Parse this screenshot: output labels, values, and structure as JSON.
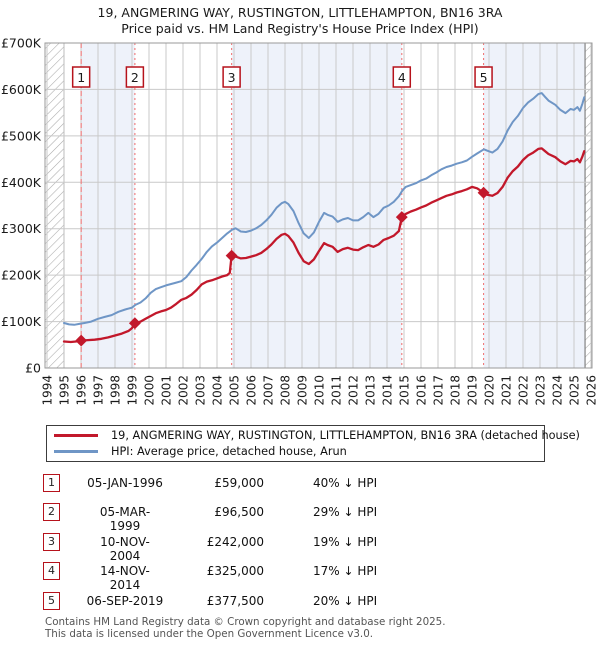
{
  "title": "19, ANGMERING WAY, RUSTINGTON, LITTLEHAMPTON, BN16 3RA",
  "subtitle": "Price paid vs. HM Land Registry's House Price Index (HPI)",
  "legend": [
    {
      "label": "19, ANGMERING WAY, RUSTINGTON, LITTLEHAMPTON, BN16 3RA (detached house)",
      "color": "#c2182b"
    },
    {
      "label": "HPI: Average price, detached house, Arun",
      "color": "#6f96c6"
    }
  ],
  "sales": [
    {
      "num": "1",
      "date": "05-JAN-1996",
      "price": "£59,000",
      "hpi_diff": "40% ↓ HPI",
      "year": 1996.01,
      "value_k": 59
    },
    {
      "num": "2",
      "date": "05-MAR-1999",
      "price": "£96,500",
      "hpi_diff": "29% ↓ HPI",
      "year": 1999.17,
      "value_k": 96.5
    },
    {
      "num": "3",
      "date": "10-NOV-2004",
      "price": "£242,000",
      "hpi_diff": "19% ↓ HPI",
      "year": 2004.86,
      "value_k": 242
    },
    {
      "num": "4",
      "date": "14-NOV-2014",
      "price": "£325,000",
      "hpi_diff": "17% ↓ HPI",
      "year": 2014.87,
      "value_k": 325
    },
    {
      "num": "5",
      "date": "06-SEP-2019",
      "price": "£377,500",
      "hpi_diff": "20% ↓ HPI",
      "year": 2019.68,
      "value_k": 377.5
    }
  ],
  "footer": {
    "line1": "Contains HM Land Registry data © Crown copyright and database right 2025.",
    "line2": "This data is licensed under the Open Government Licence v3.0."
  },
  "chart_data": {
    "type": "line",
    "title": "19, ANGMERING WAY, RUSTINGTON, LITTLEHAMPTON, BN16 3RA — Price paid vs. HPI",
    "x_ticks": [
      1994,
      1995,
      1996,
      1997,
      1998,
      1999,
      2000,
      2001,
      2002,
      2003,
      2004,
      2005,
      2006,
      2007,
      2008,
      2009,
      2010,
      2011,
      2012,
      2013,
      2014,
      2015,
      2016,
      2017,
      2018,
      2019,
      2020,
      2021,
      2022,
      2023,
      2024,
      2025,
      2026
    ],
    "y_tick_labels": [
      "£0",
      "£100K",
      "£200K",
      "£300K",
      "£400K",
      "£500K",
      "£600K",
      "£700K"
    ],
    "y_tick_values_k": [
      0,
      100,
      200,
      300,
      400,
      500,
      600,
      700
    ],
    "xlim": [
      1994,
      2026.12
    ],
    "ylim_k": [
      0,
      700
    ],
    "data_start_year": 1995.0,
    "data_end_year": 2025.65,
    "shaded_periods": [
      [
        1996.01,
        1999.17
      ],
      [
        2004.86,
        2014.87
      ],
      [
        2019.68,
        2026.12
      ]
    ],
    "legend_position": "bottom",
    "grid": true,
    "colors": {
      "price": "#c2182b",
      "hpi": "#6f96c6",
      "band": "#eef2fa",
      "grid": "#c9c9c9",
      "frame": "#999999",
      "sale_line": "#f07878",
      "hatch": "#ababab",
      "hatch_edge": "#777777",
      "badge_border": "#b6121b"
    },
    "series": [
      {
        "name": "19, ANGMERING WAY, RUSTINGTON, LITTLEHAMPTON, BN16 3RA (detached house)",
        "color": "#c2182b",
        "points": [
          [
            1995.0,
            57
          ],
          [
            1995.4,
            56
          ],
          [
            1995.7,
            57
          ],
          [
            1996.01,
            59
          ],
          [
            1996.4,
            60
          ],
          [
            1996.8,
            61
          ],
          [
            1997.2,
            63
          ],
          [
            1997.6,
            66
          ],
          [
            1998.0,
            70
          ],
          [
            1998.4,
            74
          ],
          [
            1998.8,
            80
          ],
          [
            1999.0,
            86
          ],
          [
            1999.17,
            96.5
          ],
          [
            1999.5,
            100
          ],
          [
            1999.8,
            106
          ],
          [
            2000.1,
            112
          ],
          [
            2000.4,
            118
          ],
          [
            2000.7,
            122
          ],
          [
            2001.0,
            125
          ],
          [
            2001.3,
            130
          ],
          [
            2001.6,
            138
          ],
          [
            2001.9,
            147
          ],
          [
            2002.2,
            151
          ],
          [
            2002.5,
            158
          ],
          [
            2002.8,
            168
          ],
          [
            2003.1,
            180
          ],
          [
            2003.4,
            186
          ],
          [
            2003.7,
            189
          ],
          [
            2004.0,
            193
          ],
          [
            2004.3,
            197
          ],
          [
            2004.6,
            200
          ],
          [
            2004.75,
            205
          ],
          [
            2004.86,
            242
          ],
          [
            2005.1,
            240
          ],
          [
            2005.4,
            236
          ],
          [
            2005.7,
            237
          ],
          [
            2006.0,
            240
          ],
          [
            2006.3,
            243
          ],
          [
            2006.6,
            248
          ],
          [
            2006.9,
            256
          ],
          [
            2007.2,
            266
          ],
          [
            2007.5,
            278
          ],
          [
            2007.8,
            287
          ],
          [
            2008.0,
            289
          ],
          [
            2008.2,
            284
          ],
          [
            2008.5,
            270
          ],
          [
            2008.8,
            248
          ],
          [
            2009.1,
            230
          ],
          [
            2009.4,
            224
          ],
          [
            2009.7,
            234
          ],
          [
            2010.0,
            252
          ],
          [
            2010.3,
            269
          ],
          [
            2010.5,
            265
          ],
          [
            2010.8,
            261
          ],
          [
            2011.1,
            250
          ],
          [
            2011.4,
            256
          ],
          [
            2011.7,
            259
          ],
          [
            2012.0,
            255
          ],
          [
            2012.3,
            254
          ],
          [
            2012.6,
            260
          ],
          [
            2012.9,
            265
          ],
          [
            2013.2,
            261
          ],
          [
            2013.5,
            266
          ],
          [
            2013.8,
            276
          ],
          [
            2014.1,
            280
          ],
          [
            2014.4,
            285
          ],
          [
            2014.7,
            295
          ],
          [
            2014.87,
            325
          ],
          [
            2015.1,
            332
          ],
          [
            2015.4,
            337
          ],
          [
            2015.7,
            341
          ],
          [
            2016.0,
            346
          ],
          [
            2016.3,
            350
          ],
          [
            2016.6,
            356
          ],
          [
            2016.9,
            361
          ],
          [
            2017.2,
            366
          ],
          [
            2017.5,
            371
          ],
          [
            2017.8,
            374
          ],
          [
            2018.1,
            378
          ],
          [
            2018.4,
            381
          ],
          [
            2018.7,
            385
          ],
          [
            2019.0,
            390
          ],
          [
            2019.3,
            387
          ],
          [
            2019.5,
            382
          ],
          [
            2019.68,
            377.5
          ],
          [
            2019.9,
            373
          ],
          [
            2020.2,
            371
          ],
          [
            2020.5,
            377
          ],
          [
            2020.8,
            390
          ],
          [
            2021.1,
            410
          ],
          [
            2021.4,
            424
          ],
          [
            2021.7,
            434
          ],
          [
            2022.0,
            448
          ],
          [
            2022.3,
            458
          ],
          [
            2022.6,
            464
          ],
          [
            2022.9,
            472
          ],
          [
            2023.1,
            473
          ],
          [
            2023.3,
            467
          ],
          [
            2023.5,
            461
          ],
          [
            2023.9,
            454
          ],
          [
            2024.2,
            445
          ],
          [
            2024.5,
            439
          ],
          [
            2024.8,
            446
          ],
          [
            2025.0,
            445
          ],
          [
            2025.2,
            450
          ],
          [
            2025.35,
            443
          ],
          [
            2025.5,
            456
          ],
          [
            2025.6,
            467
          ]
        ]
      },
      {
        "name": "HPI: Average price, detached house, Arun",
        "color": "#6f96c6",
        "points": [
          [
            1995.0,
            97
          ],
          [
            1995.3,
            94
          ],
          [
            1995.6,
            93
          ],
          [
            1995.9,
            95
          ],
          [
            1996.2,
            97
          ],
          [
            1996.6,
            100
          ],
          [
            1997.0,
            106
          ],
          [
            1997.4,
            110
          ],
          [
            1997.8,
            114
          ],
          [
            1998.2,
            121
          ],
          [
            1998.6,
            126
          ],
          [
            1999.0,
            130
          ],
          [
            1999.2,
            136
          ],
          [
            1999.5,
            141
          ],
          [
            1999.8,
            150
          ],
          [
            2000.1,
            162
          ],
          [
            2000.4,
            170
          ],
          [
            2000.7,
            174
          ],
          [
            2001.0,
            178
          ],
          [
            2001.3,
            181
          ],
          [
            2001.6,
            184
          ],
          [
            2001.9,
            187
          ],
          [
            2002.2,
            196
          ],
          [
            2002.5,
            210
          ],
          [
            2002.8,
            222
          ],
          [
            2003.1,
            235
          ],
          [
            2003.4,
            250
          ],
          [
            2003.7,
            262
          ],
          [
            2004.0,
            270
          ],
          [
            2004.3,
            280
          ],
          [
            2004.6,
            290
          ],
          [
            2004.9,
            298
          ],
          [
            2005.1,
            301
          ],
          [
            2005.4,
            294
          ],
          [
            2005.7,
            293
          ],
          [
            2006.0,
            296
          ],
          [
            2006.3,
            301
          ],
          [
            2006.6,
            308
          ],
          [
            2006.9,
            318
          ],
          [
            2007.2,
            330
          ],
          [
            2007.5,
            345
          ],
          [
            2007.8,
            355
          ],
          [
            2008.0,
            358
          ],
          [
            2008.2,
            353
          ],
          [
            2008.5,
            338
          ],
          [
            2008.8,
            312
          ],
          [
            2009.1,
            290
          ],
          [
            2009.4,
            280
          ],
          [
            2009.7,
            292
          ],
          [
            2010.0,
            315
          ],
          [
            2010.3,
            334
          ],
          [
            2010.5,
            330
          ],
          [
            2010.8,
            326
          ],
          [
            2011.1,
            315
          ],
          [
            2011.4,
            320
          ],
          [
            2011.7,
            323
          ],
          [
            2012.0,
            318
          ],
          [
            2012.3,
            318
          ],
          [
            2012.6,
            325
          ],
          [
            2012.9,
            334
          ],
          [
            2013.2,
            325
          ],
          [
            2013.5,
            332
          ],
          [
            2013.8,
            345
          ],
          [
            2014.1,
            350
          ],
          [
            2014.4,
            358
          ],
          [
            2014.7,
            370
          ],
          [
            2014.9,
            382
          ],
          [
            2015.1,
            390
          ],
          [
            2015.4,
            394
          ],
          [
            2015.7,
            398
          ],
          [
            2016.0,
            404
          ],
          [
            2016.3,
            408
          ],
          [
            2016.6,
            415
          ],
          [
            2016.9,
            421
          ],
          [
            2017.2,
            428
          ],
          [
            2017.5,
            433
          ],
          [
            2017.8,
            436
          ],
          [
            2018.1,
            440
          ],
          [
            2018.4,
            443
          ],
          [
            2018.7,
            447
          ],
          [
            2019.0,
            455
          ],
          [
            2019.3,
            462
          ],
          [
            2019.7,
            471
          ],
          [
            2019.9,
            468
          ],
          [
            2020.2,
            464
          ],
          [
            2020.5,
            472
          ],
          [
            2020.8,
            488
          ],
          [
            2021.1,
            512
          ],
          [
            2021.4,
            530
          ],
          [
            2021.7,
            543
          ],
          [
            2022.0,
            560
          ],
          [
            2022.3,
            572
          ],
          [
            2022.6,
            580
          ],
          [
            2022.9,
            590
          ],
          [
            2023.1,
            592
          ],
          [
            2023.3,
            584
          ],
          [
            2023.5,
            576
          ],
          [
            2023.9,
            567
          ],
          [
            2024.2,
            556
          ],
          [
            2024.5,
            549
          ],
          [
            2024.8,
            558
          ],
          [
            2025.0,
            556
          ],
          [
            2025.2,
            562
          ],
          [
            2025.35,
            554
          ],
          [
            2025.5,
            570
          ],
          [
            2025.6,
            583
          ]
        ]
      }
    ]
  }
}
